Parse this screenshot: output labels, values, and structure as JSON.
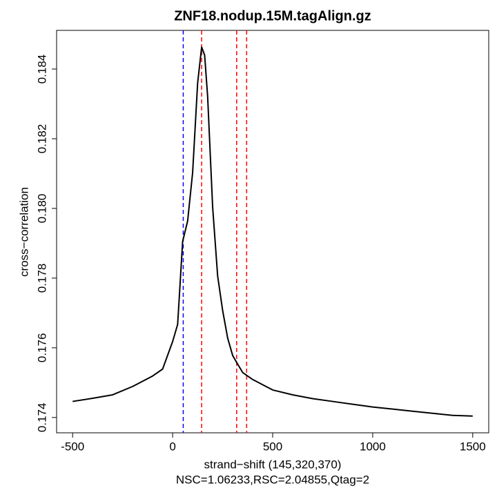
{
  "chart_data": {
    "type": "line",
    "title": "ZNF18.nodup.15M.tagAlign.gz",
    "x_label": "strand−shift (145,320,370)",
    "y_label": "cross−correlation",
    "subtitle": "NSC=1.06233,RSC=2.04855,Qtag=2",
    "x": [
      -500,
      -400,
      -300,
      -200,
      -100,
      -50,
      0,
      25,
      50,
      75,
      100,
      125,
      145,
      160,
      175,
      200,
      225,
      250,
      275,
      300,
      320,
      350,
      400,
      500,
      600,
      700,
      800,
      900,
      1000,
      1100,
      1200,
      1300,
      1400,
      1500
    ],
    "series": [
      {
        "name": "cross-correlation",
        "color": "#000000",
        "values": [
          0.17446,
          0.17455,
          0.17465,
          0.17489,
          0.17519,
          0.17539,
          0.17618,
          0.17667,
          0.17905,
          0.17964,
          0.18103,
          0.1836,
          0.18463,
          0.1844,
          0.18321,
          0.18004,
          0.17806,
          0.17707,
          0.17628,
          0.17578,
          0.17558,
          0.17529,
          0.17509,
          0.17479,
          0.17465,
          0.17454,
          0.17446,
          0.17438,
          0.1743,
          0.17424,
          0.17418,
          0.17412,
          0.17406,
          0.17404
        ]
      }
    ],
    "vlines": [
      {
        "x": 53,
        "color": "#0000ff"
      },
      {
        "x": 145,
        "color": "#ff0000"
      },
      {
        "x": 320,
        "color": "#ff0000"
      },
      {
        "x": 370,
        "color": "#ff0000"
      }
    ],
    "xlim": [
      -580,
      1580
    ],
    "xticks": [
      -500,
      0,
      500,
      1000,
      1500
    ],
    "ylim": [
      0.17356,
      0.18511
    ],
    "yticks": [
      0.174,
      0.176,
      0.178,
      {
        "value": 0.18,
        "label": "0.180"
      },
      0.182,
      0.184
    ],
    "grid": false
  }
}
